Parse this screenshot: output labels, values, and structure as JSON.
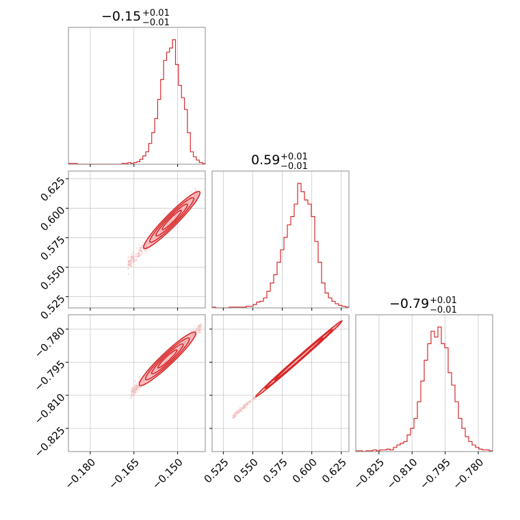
{
  "figure": {
    "titles": [
      {
        "value": "−0.15",
        "plus": "+0.01",
        "minus": "−0.01"
      },
      {
        "value": "0.59",
        "plus": "+0.01",
        "minus": "−0.01"
      },
      {
        "value": "−0.79",
        "plus": "+0.01",
        "minus": "−0.01"
      }
    ],
    "colors": {
      "main": "#d62728",
      "fill": "#f4a3a6",
      "points": "#f2b8ba",
      "grid": "#c8c8c8",
      "frame": "#8a8a8a"
    }
  },
  "chart_data": {
    "type": "corner",
    "parameters": 3,
    "ranges": [
      [
        -0.1875,
        -0.1405
      ],
      [
        0.5155,
        0.6315
      ],
      [
        -0.8355,
        -0.7735
      ]
    ],
    "ticks": [
      {
        "values": [
          -0.18,
          -0.165,
          -0.15
        ],
        "labels": [
          "−0.180",
          "−0.165",
          "−0.150"
        ]
      },
      {
        "values": [
          0.525,
          0.55,
          0.575,
          0.6,
          0.625
        ],
        "labels": [
          "0.525",
          "0.550",
          "0.575",
          "0.600",
          "0.625"
        ]
      },
      {
        "values": [
          -0.825,
          -0.81,
          -0.795,
          -0.78
        ],
        "labels": [
          "−0.825",
          "−0.810",
          "−0.795",
          "−0.780"
        ]
      }
    ],
    "histograms": [
      {
        "param": 0,
        "counts": [
          1,
          1,
          1,
          0,
          0,
          0,
          0,
          0,
          0,
          0,
          0,
          0,
          0,
          0,
          0,
          0,
          0,
          0,
          1,
          1,
          2,
          1,
          2,
          3,
          6,
          10,
          15,
          25,
          38,
          55,
          78,
          102,
          125,
          135,
          140,
          150,
          120,
          95,
          80,
          66,
          38,
          15,
          9,
          5,
          2,
          1
        ]
      },
      {
        "param": 1,
        "counts": [
          1,
          0,
          0,
          0,
          0,
          1,
          1,
          1,
          1,
          1,
          2,
          2,
          4,
          7,
          8,
          12,
          20,
          30,
          40,
          55,
          70,
          85,
          100,
          110,
          125,
          150,
          140,
          130,
          125,
          110,
          80,
          55,
          30,
          18,
          12,
          8,
          5,
          3,
          2,
          1
        ]
      },
      {
        "param": 2,
        "counts": [
          1,
          1,
          0,
          1,
          1,
          2,
          1,
          2,
          2,
          3,
          2,
          5,
          8,
          10,
          12,
          20,
          28,
          40,
          60,
          85,
          110,
          130,
          145,
          138,
          150,
          130,
          125,
          95,
          80,
          60,
          40,
          28,
          18,
          12,
          8,
          5,
          3,
          2,
          2,
          1
        ]
      }
    ],
    "pairs": [
      {
        "x_param": 0,
        "y_param": 1,
        "x_range": [
          -0.167,
          -0.143
        ],
        "slope": 2.5,
        "center": [
          -0.152,
          0.59
        ],
        "spread": 0.0025,
        "levels": 4
      },
      {
        "x_param": 0,
        "y_param": 2,
        "x_range": [
          -0.166,
          -0.142
        ],
        "slope": 1.25,
        "center": [
          -0.1535,
          -0.7935
        ],
        "spread": 0.0012,
        "levels": 4
      },
      {
        "x_param": 1,
        "y_param": 2,
        "x_range": [
          0.533,
          0.625
        ],
        "slope": 0.47,
        "center": [
          0.589,
          -0.7935
        ],
        "spread": 0.0006,
        "levels": 3
      }
    ]
  }
}
